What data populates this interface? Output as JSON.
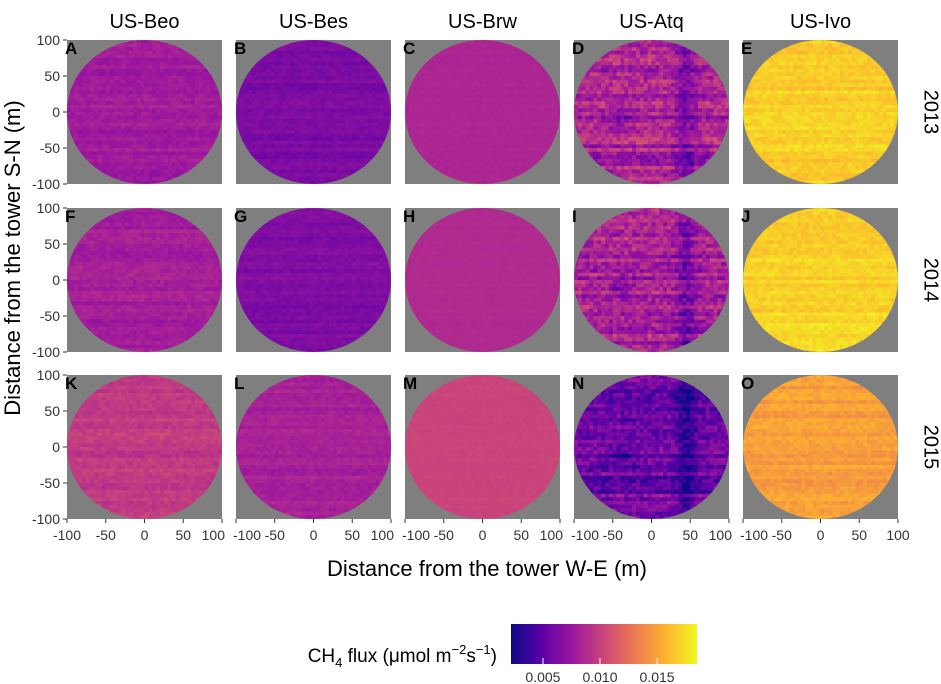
{
  "chart_data": {
    "type": "heatmap",
    "title": "",
    "xlabel": "Distance from the tower W-E (m)",
    "ylabel": "Distance from the tower S-N (m)",
    "xlim": [
      -100,
      100
    ],
    "ylim": [
      -100,
      100
    ],
    "x_ticks": [
      -100,
      -50,
      0,
      50,
      100
    ],
    "y_ticks": [
      100,
      50,
      0,
      -50,
      -100
    ],
    "x_tick_labels": [
      "-100",
      "-50",
      "0",
      "50",
      "100"
    ],
    "y_tick_labels": [
      "100",
      "50",
      "0",
      "-50",
      "-100"
    ],
    "sites": [
      "US-Beo",
      "US-Bes",
      "US-Brw",
      "US-Atq",
      "US-Ivo"
    ],
    "years": [
      "2013",
      "2014",
      "2015"
    ],
    "panel_letters": [
      [
        "A",
        "B",
        "C",
        "D",
        "E"
      ],
      [
        "F",
        "G",
        "H",
        "I",
        "J"
      ],
      [
        "K",
        "L",
        "M",
        "N",
        "O"
      ]
    ],
    "panel_background": "#7f7f7f",
    "mean_flux": [
      [
        0.0078,
        0.0062,
        0.0085,
        0.0082,
        0.0168
      ],
      [
        0.008,
        0.0064,
        0.0087,
        0.0084,
        0.017
      ],
      [
        0.0096,
        0.0082,
        0.0102,
        0.0058,
        0.0148
      ]
    ],
    "flux_variability": [
      [
        0.001,
        0.0008,
        0.0002,
        0.003,
        0.0012
      ],
      [
        0.001,
        0.0008,
        0.0002,
        0.003,
        0.0012
      ],
      [
        0.001,
        0.0008,
        0.0002,
        0.0028,
        0.0012
      ]
    ],
    "colorbar": {
      "label_prefix": "CH",
      "label_subscript": "4",
      "label_mid": " flux (",
      "label_mu": "μ",
      "label_unit": "mol m",
      "label_sup1": "−2",
      "label_s": "s",
      "label_sup2": "−1",
      "label_close": ")",
      "min": 0.0022,
      "max": 0.0185,
      "ticks": [
        0.005,
        0.01,
        0.015
      ],
      "tick_labels": [
        "0.005",
        "0.010",
        "0.015"
      ],
      "colors": [
        "#0d0887",
        "#5c01a6",
        "#9c179e",
        "#cc4778",
        "#ed7953",
        "#fdb42f",
        "#f0f921"
      ]
    }
  }
}
